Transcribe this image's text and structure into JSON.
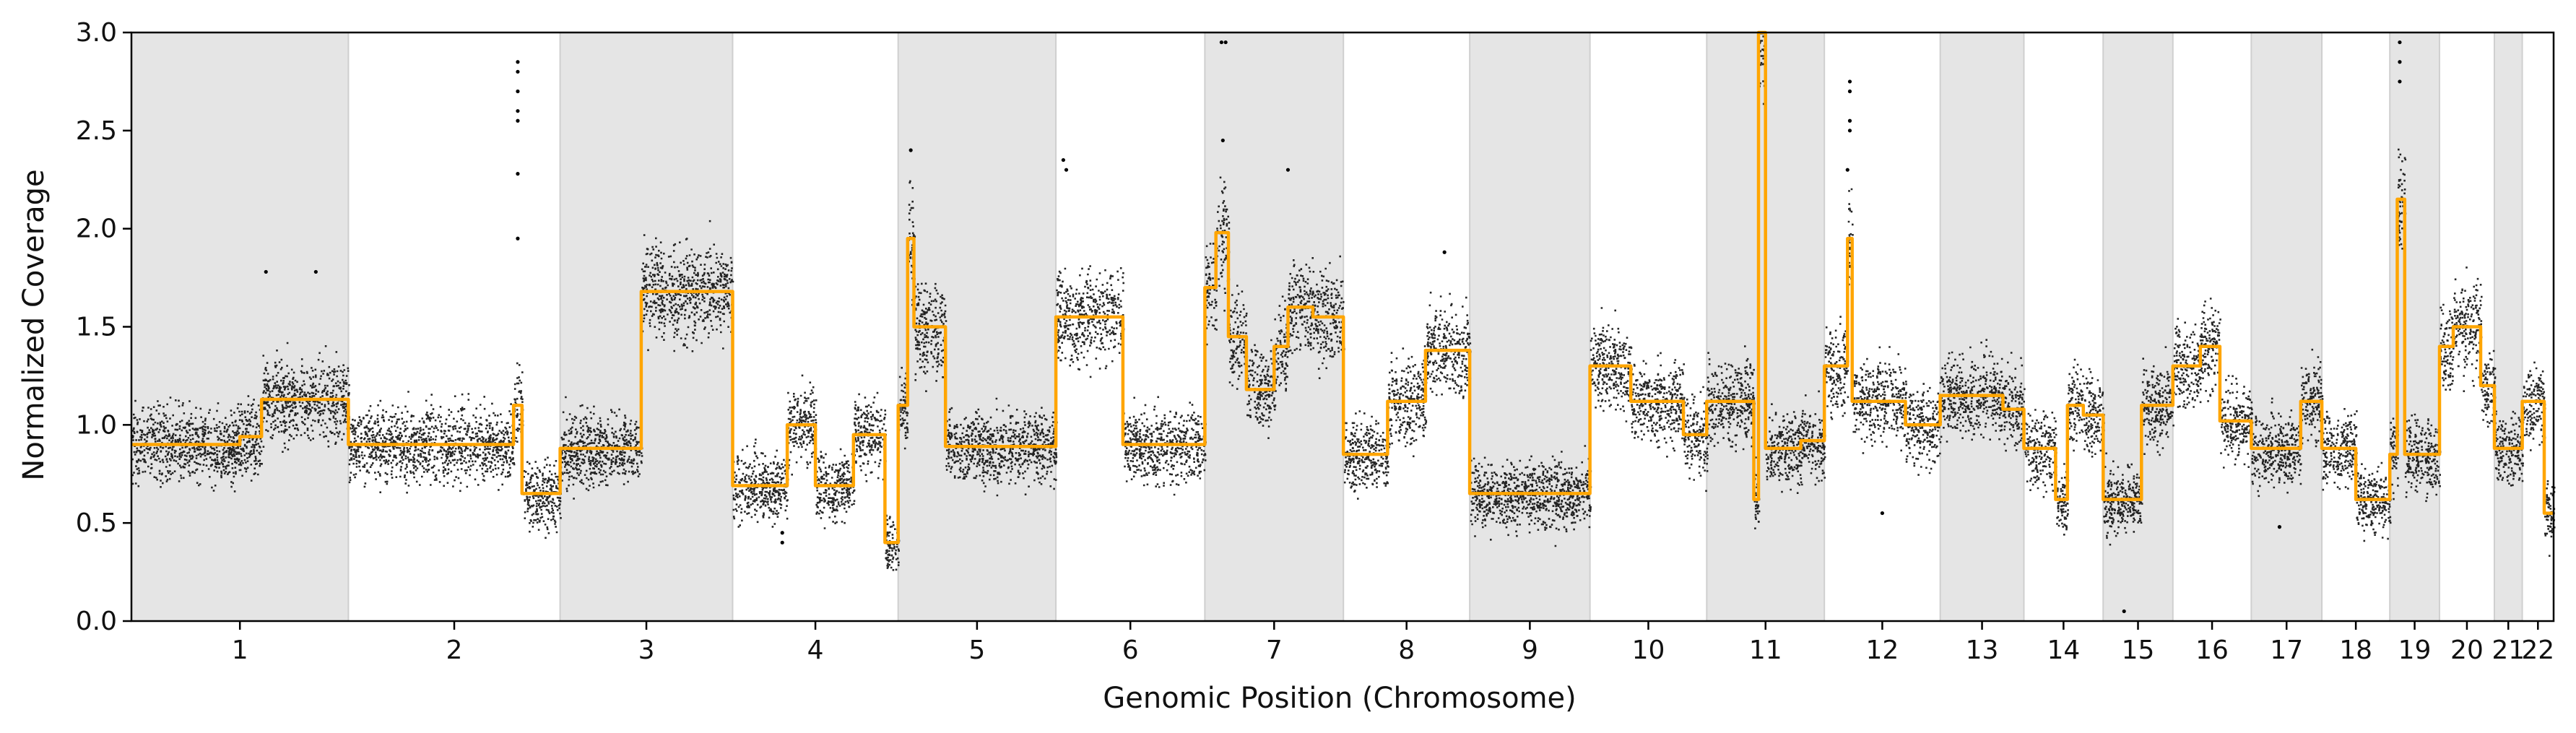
{
  "chart_data": {
    "type": "scatter",
    "xlabel": "Genomic Position (Chromosome)",
    "ylabel": "Normalized Coverage",
    "ylim": [
      0.0,
      3.0
    ],
    "yticks": [
      "0.0",
      "0.5",
      "1.0",
      "1.5",
      "2.0",
      "2.5",
      "3.0"
    ],
    "grid": false,
    "legend": "none",
    "colors": {
      "points": "#000000",
      "segment_line": "#ffa500",
      "band": "#e5e5e5",
      "band_edge": "#cfcfcf",
      "axes": "#000000"
    },
    "chromosomes": [
      {
        "label": "1",
        "length": 249,
        "shaded": true
      },
      {
        "label": "2",
        "length": 243,
        "shaded": false
      },
      {
        "label": "3",
        "length": 198,
        "shaded": true
      },
      {
        "label": "4",
        "length": 190,
        "shaded": false
      },
      {
        "label": "5",
        "length": 181,
        "shaded": true
      },
      {
        "label": "6",
        "length": 171,
        "shaded": false
      },
      {
        "label": "7",
        "length": 159,
        "shaded": true
      },
      {
        "label": "8",
        "length": 145,
        "shaded": false
      },
      {
        "label": "9",
        "length": 138,
        "shaded": true
      },
      {
        "label": "10",
        "length": 134,
        "shaded": false
      },
      {
        "label": "11",
        "length": 135,
        "shaded": true
      },
      {
        "label": "12",
        "length": 133,
        "shaded": false
      },
      {
        "label": "13",
        "length": 96,
        "shaded": true
      },
      {
        "label": "14",
        "length": 91,
        "shaded": false
      },
      {
        "label": "15",
        "length": 80,
        "shaded": true
      },
      {
        "label": "16",
        "length": 90,
        "shaded": false
      },
      {
        "label": "17",
        "length": 81,
        "shaded": true
      },
      {
        "label": "18",
        "length": 78,
        "shaded": false
      },
      {
        "label": "19",
        "length": 57,
        "shaded": true
      },
      {
        "label": "20",
        "length": 63,
        "shaded": false
      },
      {
        "label": "21",
        "length": 32,
        "shaded": true
      },
      {
        "label": "22",
        "length": 36,
        "shaded": false
      }
    ],
    "segments": [
      {
        "chrom": "1",
        "start": 0.0,
        "end": 0.5,
        "value": 0.9
      },
      {
        "chrom": "1",
        "start": 0.5,
        "end": 0.6,
        "value": 0.94
      },
      {
        "chrom": "1",
        "start": 0.6,
        "end": 1.0,
        "value": 1.13
      },
      {
        "chrom": "2",
        "start": 0.0,
        "end": 0.78,
        "value": 0.9
      },
      {
        "chrom": "2",
        "start": 0.78,
        "end": 0.82,
        "value": 1.1
      },
      {
        "chrom": "2",
        "start": 0.82,
        "end": 1.0,
        "value": 0.65
      },
      {
        "chrom": "3",
        "start": 0.0,
        "end": 0.47,
        "value": 0.88
      },
      {
        "chrom": "3",
        "start": 0.47,
        "end": 1.0,
        "value": 1.68
      },
      {
        "chrom": "4",
        "start": 0.0,
        "end": 0.33,
        "value": 0.69
      },
      {
        "chrom": "4",
        "start": 0.33,
        "end": 0.5,
        "value": 1.0
      },
      {
        "chrom": "4",
        "start": 0.5,
        "end": 0.73,
        "value": 0.69
      },
      {
        "chrom": "4",
        "start": 0.73,
        "end": 0.92,
        "value": 0.95
      },
      {
        "chrom": "4",
        "start": 0.92,
        "end": 1.0,
        "value": 0.4
      },
      {
        "chrom": "5",
        "start": 0.0,
        "end": 0.06,
        "value": 1.1
      },
      {
        "chrom": "5",
        "start": 0.06,
        "end": 0.1,
        "value": 1.95
      },
      {
        "chrom": "5",
        "start": 0.1,
        "end": 0.3,
        "value": 1.5
      },
      {
        "chrom": "5",
        "start": 0.3,
        "end": 1.0,
        "value": 0.89
      },
      {
        "chrom": "6",
        "start": 0.0,
        "end": 0.45,
        "value": 1.55
      },
      {
        "chrom": "6",
        "start": 0.45,
        "end": 1.0,
        "value": 0.9
      },
      {
        "chrom": "7",
        "start": 0.0,
        "end": 0.08,
        "value": 1.7
      },
      {
        "chrom": "7",
        "start": 0.08,
        "end": 0.17,
        "value": 1.98
      },
      {
        "chrom": "7",
        "start": 0.17,
        "end": 0.3,
        "value": 1.45
      },
      {
        "chrom": "7",
        "start": 0.3,
        "end": 0.5,
        "value": 1.18
      },
      {
        "chrom": "7",
        "start": 0.5,
        "end": 0.6,
        "value": 1.4
      },
      {
        "chrom": "7",
        "start": 0.6,
        "end": 0.78,
        "value": 1.6
      },
      {
        "chrom": "7",
        "start": 0.78,
        "end": 1.0,
        "value": 1.55
      },
      {
        "chrom": "8",
        "start": 0.0,
        "end": 0.35,
        "value": 0.85
      },
      {
        "chrom": "8",
        "start": 0.35,
        "end": 0.65,
        "value": 1.12
      },
      {
        "chrom": "8",
        "start": 0.65,
        "end": 1.0,
        "value": 1.38
      },
      {
        "chrom": "9",
        "start": 0.0,
        "end": 0.35,
        "value": 0.65
      },
      {
        "chrom": "9",
        "start": 0.35,
        "end": 0.5,
        "value": 0.65
      },
      {
        "chrom": "9",
        "start": 0.5,
        "end": 1.0,
        "value": 0.65
      },
      {
        "chrom": "10",
        "start": 0.0,
        "end": 0.35,
        "value": 1.3
      },
      {
        "chrom": "10",
        "start": 0.35,
        "end": 0.8,
        "value": 1.12
      },
      {
        "chrom": "10",
        "start": 0.8,
        "end": 1.0,
        "value": 0.95
      },
      {
        "chrom": "11",
        "start": 0.0,
        "end": 0.4,
        "value": 1.12
      },
      {
        "chrom": "11",
        "start": 0.4,
        "end": 0.44,
        "value": 0.62
      },
      {
        "chrom": "11",
        "start": 0.44,
        "end": 0.5,
        "value": 3.0
      },
      {
        "chrom": "11",
        "start": 0.5,
        "end": 0.8,
        "value": 0.88
      },
      {
        "chrom": "11",
        "start": 0.8,
        "end": 1.0,
        "value": 0.92
      },
      {
        "chrom": "12",
        "start": 0.0,
        "end": 0.2,
        "value": 1.3
      },
      {
        "chrom": "12",
        "start": 0.2,
        "end": 0.24,
        "value": 1.95
      },
      {
        "chrom": "12",
        "start": 0.24,
        "end": 0.7,
        "value": 1.12
      },
      {
        "chrom": "12",
        "start": 0.7,
        "end": 1.0,
        "value": 1.0
      },
      {
        "chrom": "13",
        "start": 0.0,
        "end": 0.75,
        "value": 1.15
      },
      {
        "chrom": "13",
        "start": 0.75,
        "end": 1.0,
        "value": 1.08
      },
      {
        "chrom": "14",
        "start": 0.0,
        "end": 0.4,
        "value": 0.88
      },
      {
        "chrom": "14",
        "start": 0.4,
        "end": 0.55,
        "value": 0.62
      },
      {
        "chrom": "14",
        "start": 0.55,
        "end": 0.75,
        "value": 1.1
      },
      {
        "chrom": "14",
        "start": 0.75,
        "end": 1.0,
        "value": 1.05
      },
      {
        "chrom": "15",
        "start": 0.0,
        "end": 0.55,
        "value": 0.62
      },
      {
        "chrom": "15",
        "start": 0.55,
        "end": 1.0,
        "value": 1.1
      },
      {
        "chrom": "16",
        "start": 0.0,
        "end": 0.35,
        "value": 1.3
      },
      {
        "chrom": "16",
        "start": 0.35,
        "end": 0.6,
        "value": 1.4
      },
      {
        "chrom": "16",
        "start": 0.6,
        "end": 1.0,
        "value": 1.02
      },
      {
        "chrom": "17",
        "start": 0.0,
        "end": 0.7,
        "value": 0.88
      },
      {
        "chrom": "17",
        "start": 0.7,
        "end": 1.0,
        "value": 1.12
      },
      {
        "chrom": "18",
        "start": 0.0,
        "end": 0.5,
        "value": 0.88
      },
      {
        "chrom": "18",
        "start": 0.5,
        "end": 1.0,
        "value": 0.62
      },
      {
        "chrom": "19",
        "start": 0.0,
        "end": 0.15,
        "value": 0.85
      },
      {
        "chrom": "19",
        "start": 0.15,
        "end": 0.3,
        "value": 2.15
      },
      {
        "chrom": "19",
        "start": 0.3,
        "end": 1.0,
        "value": 0.85
      },
      {
        "chrom": "20",
        "start": 0.0,
        "end": 0.25,
        "value": 1.4
      },
      {
        "chrom": "20",
        "start": 0.25,
        "end": 0.75,
        "value": 1.5
      },
      {
        "chrom": "20",
        "start": 0.75,
        "end": 1.0,
        "value": 1.2
      },
      {
        "chrom": "21",
        "start": 0.0,
        "end": 1.0,
        "value": 0.88
      },
      {
        "chrom": "22",
        "start": 0.0,
        "end": 0.7,
        "value": 1.12
      },
      {
        "chrom": "22",
        "start": 0.7,
        "end": 1.0,
        "value": 0.55
      }
    ],
    "outliers": [
      {
        "chrom": "2",
        "pos": 0.8,
        "value": 2.85
      },
      {
        "chrom": "2",
        "pos": 0.8,
        "value": 2.8
      },
      {
        "chrom": "2",
        "pos": 0.8,
        "value": 2.7
      },
      {
        "chrom": "2",
        "pos": 0.8,
        "value": 2.6
      },
      {
        "chrom": "2",
        "pos": 0.8,
        "value": 2.55
      },
      {
        "chrom": "2",
        "pos": 0.8,
        "value": 2.28
      },
      {
        "chrom": "2",
        "pos": 0.8,
        "value": 1.95
      },
      {
        "chrom": "5",
        "pos": 0.08,
        "value": 2.4
      },
      {
        "chrom": "6",
        "pos": 0.05,
        "value": 2.35
      },
      {
        "chrom": "6",
        "pos": 0.07,
        "value": 2.3
      },
      {
        "chrom": "7",
        "pos": 0.12,
        "value": 2.95
      },
      {
        "chrom": "7",
        "pos": 0.15,
        "value": 2.95
      },
      {
        "chrom": "7",
        "pos": 0.13,
        "value": 2.45
      },
      {
        "chrom": "7",
        "pos": 0.6,
        "value": 2.3
      },
      {
        "chrom": "8",
        "pos": 0.8,
        "value": 1.88
      },
      {
        "chrom": "12",
        "pos": 0.22,
        "value": 2.75
      },
      {
        "chrom": "12",
        "pos": 0.22,
        "value": 2.7
      },
      {
        "chrom": "12",
        "pos": 0.22,
        "value": 2.55
      },
      {
        "chrom": "12",
        "pos": 0.22,
        "value": 2.5
      },
      {
        "chrom": "12",
        "pos": 0.2,
        "value": 2.3
      },
      {
        "chrom": "12",
        "pos": 0.5,
        "value": 0.55
      },
      {
        "chrom": "4",
        "pos": 0.3,
        "value": 0.4
      },
      {
        "chrom": "4",
        "pos": 0.3,
        "value": 0.45
      },
      {
        "chrom": "15",
        "pos": 0.3,
        "value": 0.05
      },
      {
        "chrom": "19",
        "pos": 0.2,
        "value": 2.95
      },
      {
        "chrom": "19",
        "pos": 0.2,
        "value": 2.85
      },
      {
        "chrom": "19",
        "pos": 0.2,
        "value": 2.75
      },
      {
        "chrom": "1",
        "pos": 0.62,
        "value": 1.78
      },
      {
        "chrom": "1",
        "pos": 0.85,
        "value": 1.78
      },
      {
        "chrom": "17",
        "pos": 0.4,
        "value": 0.48
      }
    ]
  }
}
